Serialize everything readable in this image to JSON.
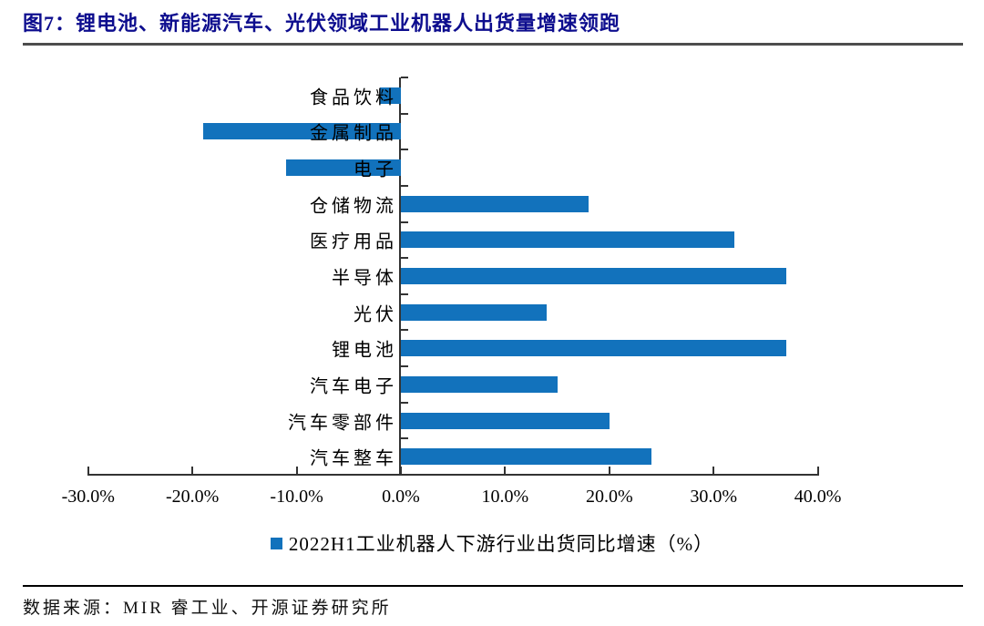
{
  "figure": {
    "title": "图7：锂电池、新能源汽车、光伏领域工业机器人出货量增速领跑",
    "source": "数据来源：MIR 睿工业、开源证券研究所"
  },
  "legend": {
    "label": "2022H1工业机器人下游行业出货同比增速（%）"
  },
  "chart_data": {
    "type": "bar",
    "orientation": "horizontal",
    "title": "",
    "xlabel": "",
    "ylabel": "",
    "categories": [
      "食品饮料",
      "金属制品",
      "电子",
      "仓储物流",
      "医疗用品",
      "半导体",
      "光伏",
      "锂电池",
      "汽车电子",
      "汽车零部件",
      "汽车整车"
    ],
    "values": [
      -2,
      -19,
      -11,
      18,
      32,
      37,
      14,
      37,
      15,
      20,
      24
    ],
    "series_name": "2022H1工业机器人下游行业出货同比增速（%）",
    "unit": "%",
    "xlim": [
      -30,
      40
    ],
    "x_tick_values": [
      -30,
      -20,
      -10,
      0,
      10,
      20,
      30,
      40
    ],
    "x_tick_labels": [
      "-30.0%",
      "-20.0%",
      "-10.0%",
      "0.0%",
      "10.0%",
      "20.0%",
      "30.0%",
      "40.0%"
    ],
    "grid": false,
    "legend_position": "bottom"
  },
  "colors": {
    "bar": "#1272BC",
    "title": "#0D0D8E",
    "title_rule": "#4D4D4D",
    "axis": "#333333",
    "text": "#000000"
  }
}
